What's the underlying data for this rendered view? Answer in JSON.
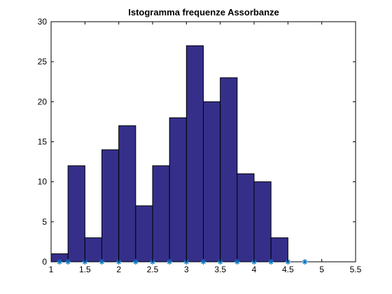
{
  "chart_data": {
    "type": "bar",
    "title": "Istogramma frequenze Assorbanze",
    "xlabel": "",
    "ylabel": "",
    "xlim": [
      1,
      5.5
    ],
    "ylim": [
      0,
      30
    ],
    "xticks": [
      "1",
      "1.5",
      "2",
      "2.5",
      "3",
      "3.5",
      "4",
      "4.5",
      "5",
      "5.5"
    ],
    "yticks": [
      "0",
      "5",
      "10",
      "15",
      "20",
      "25",
      "30"
    ],
    "bin_width": 0.25,
    "bin_start": 1.0,
    "values": [
      1,
      12,
      3,
      14,
      17,
      7,
      12,
      18,
      27,
      20,
      23,
      11,
      10,
      3
    ],
    "bin_centers_marked": [
      1.125,
      1.25,
      1.5,
      1.75,
      2.0,
      2.25,
      2.5,
      2.75,
      3.0,
      3.25,
      3.5,
      3.75,
      4.0,
      4.25,
      4.5,
      4.75
    ],
    "bar_color": "#352f8a",
    "edge_color": "#000000",
    "marker_color": "#0072bd",
    "grid": false
  }
}
